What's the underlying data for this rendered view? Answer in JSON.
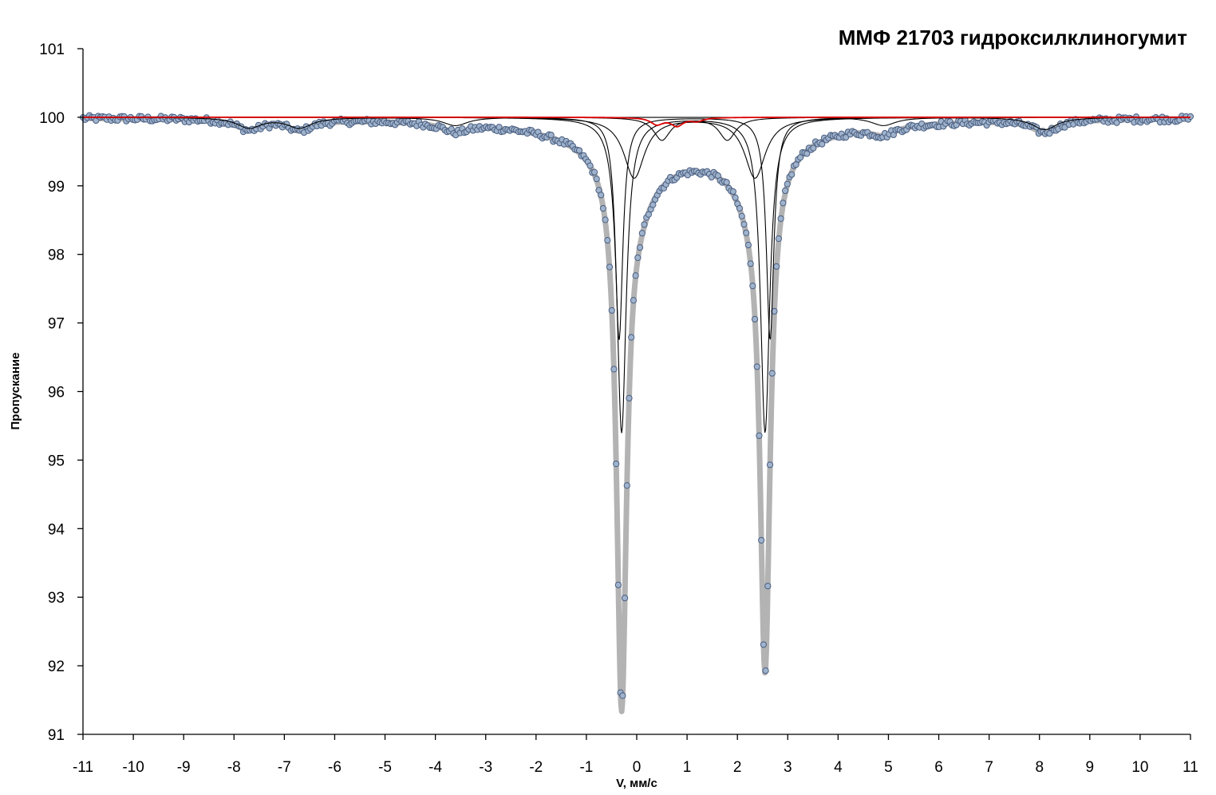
{
  "chart_data": {
    "type": "scatter",
    "title": "ММФ 21703 гидроксилклиногумит",
    "xlabel": "V, мм/с",
    "ylabel": "Пропускание",
    "xlim": [
      -11,
      11
    ],
    "ylim": [
      91,
      101
    ],
    "x_ticks": [
      "-11",
      "-10",
      "-9",
      "-8",
      "-7",
      "-6",
      "-5",
      "-4",
      "-3",
      "-2",
      "-1",
      "0",
      "1",
      "2",
      "3",
      "4",
      "5",
      "6",
      "7",
      "8",
      "9",
      "10",
      "11"
    ],
    "y_ticks": [
      "91",
      "92",
      "93",
      "94",
      "95",
      "96",
      "97",
      "98",
      "99",
      "100",
      "101"
    ],
    "grid": false,
    "legend": "none",
    "baseline": 100,
    "colors": {
      "points_fill": "#9fb3cc",
      "points_stroke": "#4a5e80",
      "envelope": "#b3b3b3",
      "components": "#000000",
      "residual": "#dd0000"
    },
    "series": [
      {
        "role": "measured-points",
        "kind": "scatter",
        "x_range": [
          -11,
          11
        ],
        "n_points": 512,
        "notable_values": [
          {
            "x": -0.3,
            "y": 92.2
          },
          {
            "x": 1.0,
            "y": 99.8
          },
          {
            "x": 2.55,
            "y": 92.75
          }
        ]
      },
      {
        "role": "envelope-fit",
        "kind": "line",
        "peaks": [
          {
            "center": -0.3,
            "depth": 7.8,
            "hwhm": 0.12
          },
          {
            "center": 2.55,
            "depth": 7.25,
            "hwhm": 0.12
          },
          {
            "center": 0.0,
            "depth": 0.6,
            "hwhm": 0.45
          },
          {
            "center": 2.3,
            "depth": 0.6,
            "hwhm": 0.45
          },
          {
            "center": 0.3,
            "depth": 0.35,
            "hwhm": 1.6
          },
          {
            "center": 1.8,
            "depth": 0.3,
            "hwhm": 1.6
          },
          {
            "center": -7.7,
            "depth": 0.15,
            "hwhm": 0.3
          },
          {
            "center": -6.7,
            "depth": 0.15,
            "hwhm": 0.3
          },
          {
            "center": -3.6,
            "depth": 0.12,
            "hwhm": 0.3
          },
          {
            "center": 4.9,
            "depth": 0.12,
            "hwhm": 0.3
          },
          {
            "center": 8.1,
            "depth": 0.18,
            "hwhm": 0.3
          }
        ]
      },
      {
        "role": "component-1",
        "kind": "line",
        "peaks": [
          {
            "center": -0.3,
            "depth": 4.6,
            "hwhm": 0.11
          },
          {
            "center": 2.55,
            "depth": 4.6,
            "hwhm": 0.11
          }
        ]
      },
      {
        "role": "component-2",
        "kind": "line",
        "peaks": [
          {
            "center": -0.35,
            "depth": 3.25,
            "hwhm": 0.09
          },
          {
            "center": 2.65,
            "depth": 3.25,
            "hwhm": 0.09
          }
        ]
      },
      {
        "role": "component-3",
        "kind": "line",
        "peaks": [
          {
            "center": -0.05,
            "depth": 0.88,
            "hwhm": 0.25
          },
          {
            "center": 2.35,
            "depth": 0.88,
            "hwhm": 0.25
          }
        ]
      },
      {
        "role": "component-4",
        "kind": "line",
        "peaks": [
          {
            "center": 0.5,
            "depth": 0.33,
            "hwhm": 0.2
          },
          {
            "center": 1.8,
            "depth": 0.33,
            "hwhm": 0.2
          }
        ]
      },
      {
        "role": "component-5",
        "kind": "line",
        "peaks": [
          {
            "center": -7.7,
            "depth": 0.15,
            "hwhm": 0.3
          },
          {
            "center": -6.7,
            "depth": 0.15,
            "hwhm": 0.3
          },
          {
            "center": -3.6,
            "depth": 0.12,
            "hwhm": 0.3
          },
          {
            "center": 4.9,
            "depth": 0.12,
            "hwhm": 0.3
          },
          {
            "center": 8.1,
            "depth": 0.18,
            "hwhm": 0.3
          }
        ]
      },
      {
        "role": "component-6-red",
        "kind": "line",
        "peaks": [
          {
            "center": 0.4,
            "depth": 0.1,
            "hwhm": 0.15
          },
          {
            "center": 0.8,
            "depth": 0.12,
            "hwhm": 0.15
          },
          {
            "center": 1.2,
            "depth": 0.05,
            "hwhm": 0.15
          }
        ]
      }
    ]
  }
}
